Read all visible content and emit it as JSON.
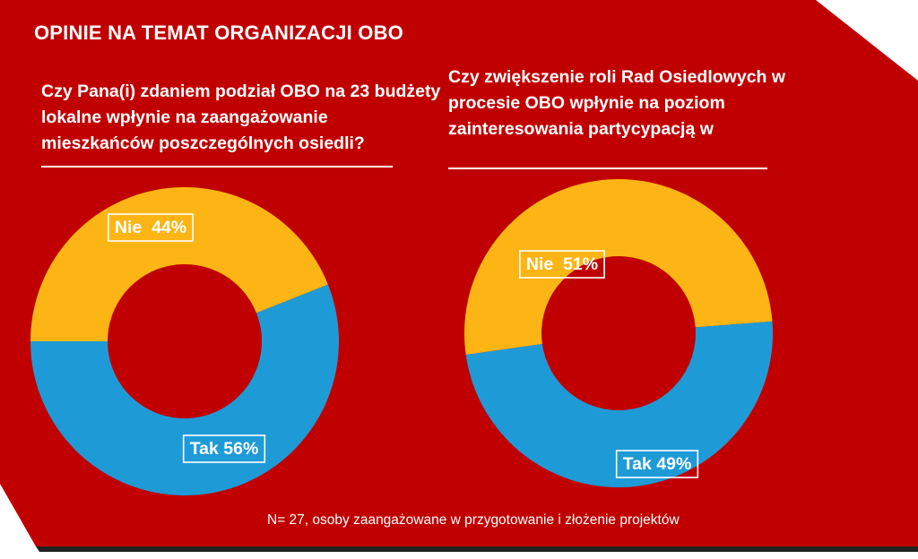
{
  "slide": {
    "title": "OPINIE NA TEMAT ORGANIZACJI OBO",
    "footnote": "N= 27, osoby zaangażowane w przygotowanie i złożenie projektów"
  },
  "colors": {
    "background": "#C00000",
    "yes": "#1E9BD7",
    "no": "#FDB515",
    "text": "#FFFFFF"
  },
  "chart_data": [
    {
      "type": "pie",
      "title": "Czy Pana(i) zdaniem podział OBO na 23 budżety lokalne wpłynie na zaangażowanie mieszkańców poszczególnych osiedli?",
      "categories": [
        "Nie",
        "Tak"
      ],
      "values": [
        44,
        56
      ],
      "data_labels": [
        "Nie  44%",
        "Tak 56%"
      ],
      "donut": true
    },
    {
      "type": "pie",
      "title": "Czy zwiększenie roli Rad Osiedlowych w procesie OBO wpłynie na poziom zainteresowania partycypacją  w",
      "categories": [
        "Nie",
        "Tak"
      ],
      "values": [
        51,
        49
      ],
      "data_labels": [
        "Nie  51%",
        "Tak 49%"
      ],
      "donut": true
    }
  ]
}
